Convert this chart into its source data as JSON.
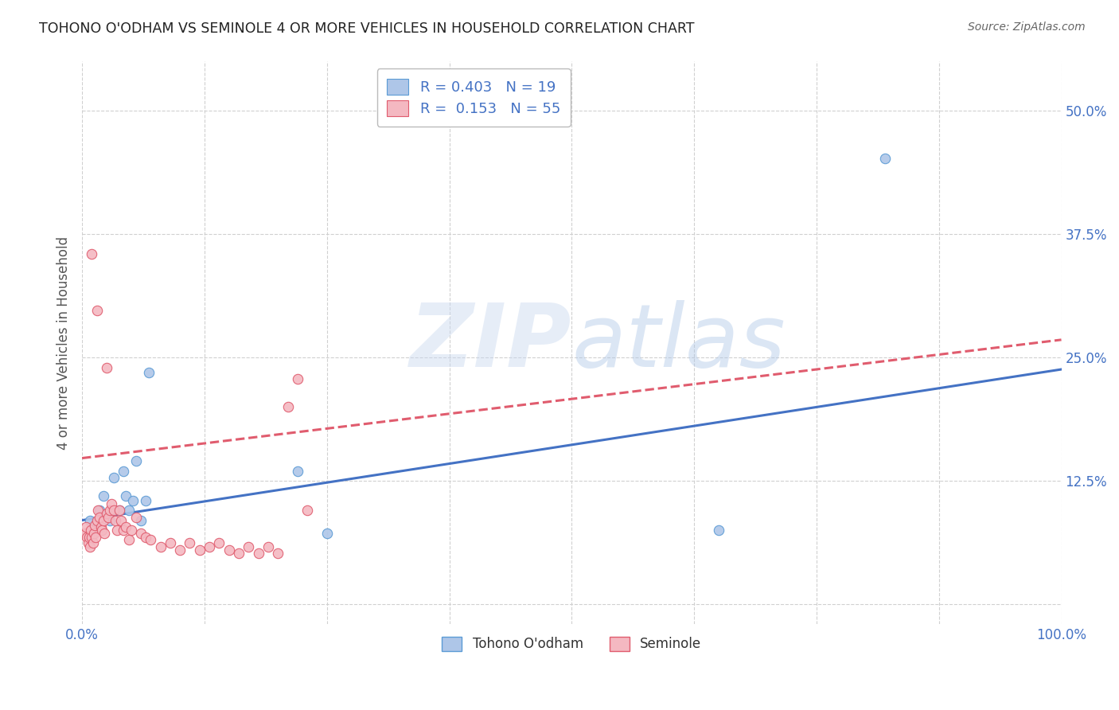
{
  "title": "TOHONO O'ODHAM VS SEMINOLE 4 OR MORE VEHICLES IN HOUSEHOLD CORRELATION CHART",
  "source": "Source: ZipAtlas.com",
  "ylabel": "4 or more Vehicles in Household",
  "watermark": "ZIPatlas",
  "xlim": [
    0.0,
    1.0
  ],
  "ylim": [
    -0.02,
    0.55
  ],
  "xticks": [
    0.0,
    0.125,
    0.25,
    0.375,
    0.5,
    0.625,
    0.75,
    0.875,
    1.0
  ],
  "xticklabels": [
    "0.0%",
    "",
    "",
    "",
    "",
    "",
    "",
    "",
    "100.0%"
  ],
  "yticks": [
    0.0,
    0.125,
    0.25,
    0.375,
    0.5
  ],
  "yticklabels": [
    "",
    "12.5%",
    "25.0%",
    "37.5%",
    "50.0%"
  ],
  "legend_entries": [
    {
      "label": "R = 0.403   N = 19",
      "color": "#aec6e8",
      "edge_color": "#5b9bd5"
    },
    {
      "label": "R =  0.153   N = 55",
      "color": "#f4b8c1",
      "edge_color": "#e05c6e"
    }
  ],
  "series": [
    {
      "name": "Tohono O'odham",
      "color": "#aec6e8",
      "edge_color": "#5b9bd5",
      "trendline_color": "#4472c4",
      "trendline_style": "-",
      "trendline_x": [
        0.0,
        1.0
      ],
      "trendline_y": [
        0.085,
        0.238
      ],
      "points_x": [
        0.008,
        0.012,
        0.018,
        0.022,
        0.028,
        0.032,
        0.038,
        0.042,
        0.045,
        0.048,
        0.052,
        0.055,
        0.06,
        0.065,
        0.068,
        0.22,
        0.25,
        0.65,
        0.82
      ],
      "points_y": [
        0.085,
        0.075,
        0.095,
        0.11,
        0.085,
        0.128,
        0.095,
        0.135,
        0.11,
        0.095,
        0.105,
        0.145,
        0.085,
        0.105,
        0.235,
        0.135,
        0.072,
        0.075,
        0.452
      ]
    },
    {
      "name": "Seminole",
      "color": "#f4b8c1",
      "edge_color": "#e05c6e",
      "trendline_color": "#e05c6e",
      "trendline_style": "--",
      "trendline_x": [
        0.0,
        1.0
      ],
      "trendline_y": [
        0.148,
        0.268
      ],
      "points_x": [
        0.003,
        0.004,
        0.005,
        0.006,
        0.007,
        0.008,
        0.009,
        0.01,
        0.011,
        0.012,
        0.013,
        0.014,
        0.015,
        0.016,
        0.018,
        0.019,
        0.02,
        0.022,
        0.023,
        0.025,
        0.027,
        0.028,
        0.03,
        0.032,
        0.034,
        0.036,
        0.038,
        0.04,
        0.042,
        0.045,
        0.048,
        0.05,
        0.055,
        0.06,
        0.065,
        0.07,
        0.08,
        0.09,
        0.1,
        0.11,
        0.12,
        0.13,
        0.14,
        0.15,
        0.16,
        0.17,
        0.18,
        0.19,
        0.2,
        0.21,
        0.22,
        0.23,
        0.01,
        0.015,
        0.025
      ],
      "points_y": [
        0.072,
        0.078,
        0.068,
        0.062,
        0.068,
        0.058,
        0.075,
        0.068,
        0.062,
        0.072,
        0.08,
        0.068,
        0.085,
        0.095,
        0.088,
        0.078,
        0.075,
        0.085,
        0.072,
        0.092,
        0.088,
        0.095,
        0.102,
        0.095,
        0.085,
        0.075,
        0.095,
        0.085,
        0.075,
        0.078,
        0.065,
        0.075,
        0.088,
        0.072,
        0.068,
        0.065,
        0.058,
        0.062,
        0.055,
        0.062,
        0.055,
        0.058,
        0.062,
        0.055,
        0.052,
        0.058,
        0.052,
        0.058,
        0.052,
        0.2,
        0.228,
        0.095,
        0.355,
        0.298,
        0.24
      ]
    }
  ],
  "background_color": "#ffffff",
  "grid_color": "#d0d0d0",
  "title_color": "#222222",
  "source_color": "#666666",
  "axis_label_color": "#555555",
  "tick_color": "#4472c4",
  "watermark_color": "#c8d8ef",
  "watermark_alpha": 0.45
}
